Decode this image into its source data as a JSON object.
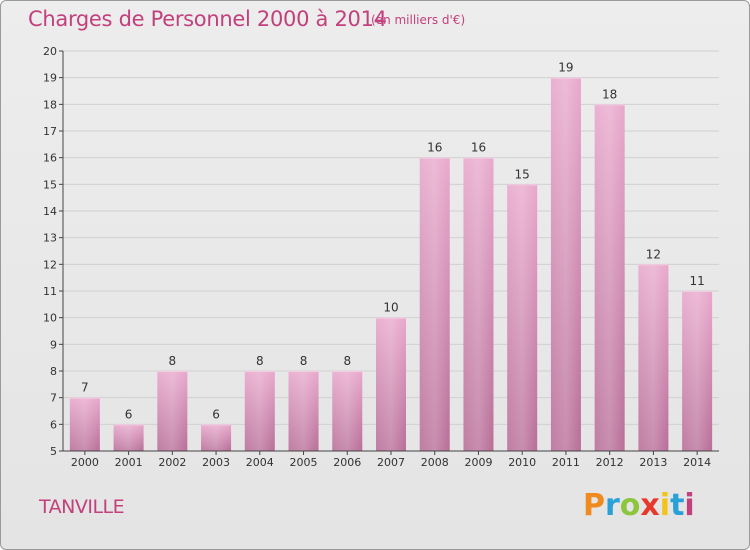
{
  "title": "Charges de Personnel 2000 à 2014",
  "subtitle": "(en milliers d'€)",
  "place": "TANVILLE",
  "brand": {
    "letters": [
      "P",
      "r",
      "o",
      "x",
      "i",
      "t",
      "i"
    ],
    "colors": [
      "#f08a1e",
      "#2aa0d8",
      "#8cc63f",
      "#e8382b",
      "#f2c318",
      "#2aa0d8",
      "#c2407c"
    ]
  },
  "colors": {
    "bar_top": "#e8a8cc",
    "bar_bottom": "#b86e98",
    "accent": "#c2407c",
    "axis": "#444444",
    "grid": "#d0d0d0"
  },
  "chart_data": {
    "type": "bar",
    "title": "Charges de Personnel 2000 à 2014",
    "subtitle": "(en milliers d'€)",
    "xlabel": "",
    "ylabel": "",
    "categories": [
      "2000",
      "2001",
      "2002",
      "2003",
      "2004",
      "2005",
      "2006",
      "2007",
      "2008",
      "2009",
      "2010",
      "2011",
      "2012",
      "2013",
      "2014"
    ],
    "values": [
      7,
      6,
      8,
      6,
      8,
      8,
      8,
      10,
      16,
      16,
      15,
      19,
      18,
      12,
      11
    ],
    "ylim": [
      5,
      20
    ],
    "yticks": [
      5,
      6,
      7,
      8,
      9,
      10,
      11,
      12,
      13,
      14,
      15,
      16,
      17,
      18,
      19,
      20
    ],
    "grid": true,
    "data_labels": true
  }
}
